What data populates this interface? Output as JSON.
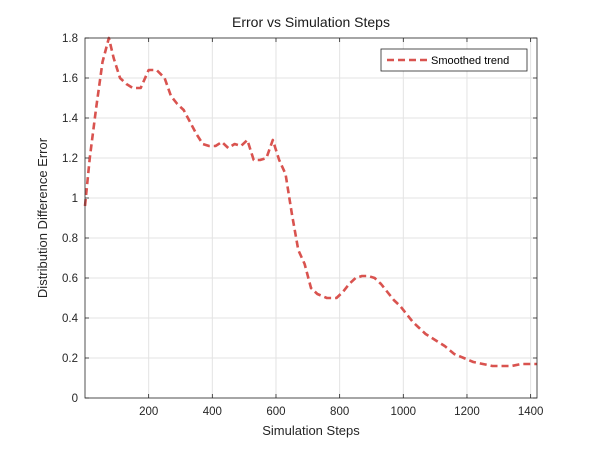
{
  "chart_data": {
    "type": "line",
    "title": "Error vs Simulation Steps",
    "xlabel": "Simulation Steps",
    "ylabel": "Distribution Difference Error",
    "xlim": [
      0,
      1420
    ],
    "ylim": [
      0,
      1.8
    ],
    "x_ticks": [
      200,
      400,
      600,
      800,
      1000,
      1200,
      1400
    ],
    "x_tick_labels": [
      "200",
      "400",
      "600",
      "800",
      "1000",
      "1200",
      "1400"
    ],
    "y_ticks": [
      0,
      0.2,
      0.4,
      0.6,
      0.8,
      1,
      1.2,
      1.4,
      1.6,
      1.8
    ],
    "y_tick_labels": [
      "0",
      "0.2",
      "0.4",
      "0.6",
      "0.8",
      "1",
      "1.2",
      "1.4",
      "1.6",
      "1.8"
    ],
    "grid": true,
    "legend_position": "top-right",
    "series": [
      {
        "name": "Smoothed trend",
        "color": "#d9534f",
        "line_style": "dashed",
        "x": [
          0,
          15,
          35,
          55,
          75,
          90,
          110,
          130,
          150,
          175,
          200,
          225,
          250,
          270,
          290,
          310,
          330,
          350,
          370,
          390,
          410,
          430,
          450,
          470,
          490,
          510,
          530,
          550,
          570,
          590,
          610,
          630,
          650,
          670,
          690,
          710,
          730,
          760,
          790,
          810,
          830,
          850,
          870,
          890,
          910,
          930,
          950,
          970,
          990,
          1010,
          1030,
          1050,
          1070,
          1100,
          1130,
          1160,
          1190,
          1220,
          1250,
          1280,
          1310,
          1340,
          1370,
          1400,
          1420
        ],
        "y": [
          0.96,
          1.2,
          1.45,
          1.68,
          1.8,
          1.7,
          1.6,
          1.57,
          1.55,
          1.55,
          1.64,
          1.64,
          1.6,
          1.51,
          1.47,
          1.44,
          1.38,
          1.32,
          1.27,
          1.26,
          1.26,
          1.28,
          1.25,
          1.27,
          1.26,
          1.29,
          1.19,
          1.19,
          1.2,
          1.29,
          1.19,
          1.12,
          0.92,
          0.74,
          0.67,
          0.55,
          0.52,
          0.5,
          0.5,
          0.53,
          0.57,
          0.6,
          0.61,
          0.61,
          0.6,
          0.57,
          0.53,
          0.49,
          0.46,
          0.42,
          0.38,
          0.35,
          0.32,
          0.29,
          0.26,
          0.22,
          0.2,
          0.18,
          0.17,
          0.16,
          0.16,
          0.16,
          0.17,
          0.17,
          0.17
        ]
      }
    ]
  }
}
